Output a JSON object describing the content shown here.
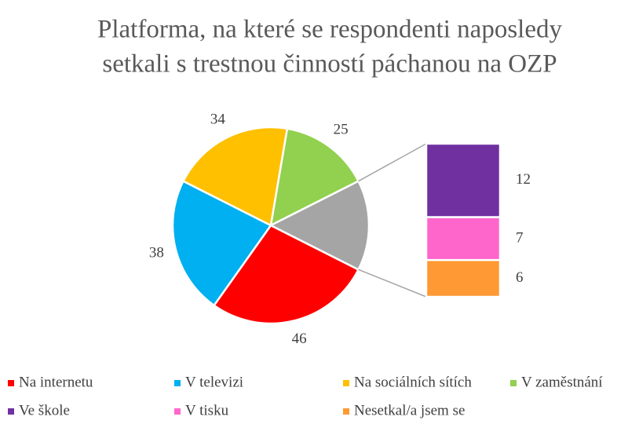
{
  "chart_data": {
    "type": "pie-of-bar",
    "title": [
      "Platforma, na které se respondenti naposledy",
      "setkali s trestnou činností páchanou na OZP"
    ],
    "pie": {
      "categories": [
        "Na internetu",
        "V televizi",
        "Na sociálních sítích",
        "V zaměstnání"
      ],
      "values": [
        46,
        38,
        34,
        25
      ],
      "colors": [
        "#ff0000",
        "#00b0f0",
        "#ffc000",
        "#92d050"
      ]
    },
    "other_color": "#a5a5a5",
    "bar": {
      "categories": [
        "Ve škole",
        "V tisku",
        "Nesetkal/a jsem se"
      ],
      "values": [
        12,
        7,
        6
      ],
      "colors": [
        "#7030a0",
        "#ff66cc",
        "#ff9933"
      ]
    },
    "legend": "bottom"
  }
}
